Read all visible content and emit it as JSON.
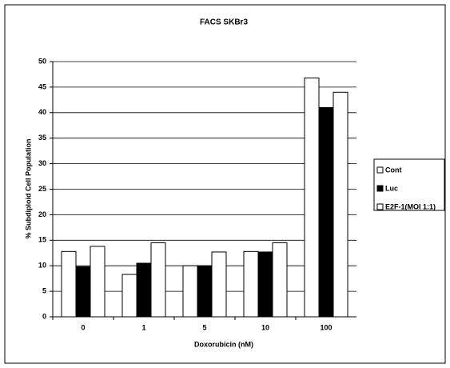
{
  "chart_data": {
    "type": "bar",
    "title": "FACS SKBr3",
    "x_label": "Doxorubicin (nM)",
    "y_label": "% Subdiploid Cell Population",
    "categories": [
      "0",
      "1",
      "5",
      "10",
      "100"
    ],
    "series": [
      {
        "name": "Cont",
        "color": "#ffffff",
        "values": [
          12.8,
          8.3,
          10,
          12.8,
          46.8
        ]
      },
      {
        "name": "Luc",
        "color": "#000000",
        "values": [
          9.8,
          10.5,
          10,
          12.7,
          41
        ]
      },
      {
        "name": "E2F-1(MOI 1:1)",
        "color": "#ffffff",
        "values": [
          13.8,
          14.5,
          12.7,
          14.5,
          44
        ]
      }
    ],
    "ylim": [
      0,
      50
    ],
    "yticks": [
      0,
      5,
      10,
      15,
      20,
      25,
      30,
      35,
      40,
      45,
      50
    ],
    "grid": true,
    "legend": "right"
  }
}
